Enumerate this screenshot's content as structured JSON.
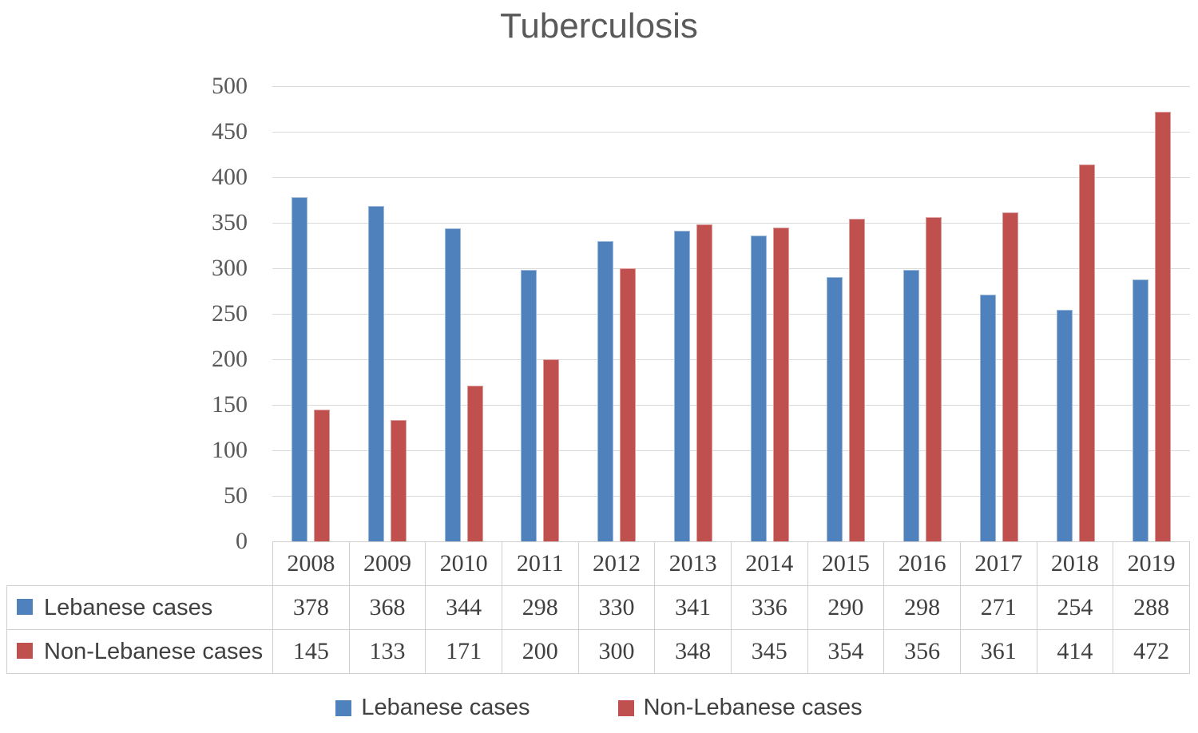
{
  "title": "Tuberculosis",
  "chart_data": {
    "type": "bar",
    "title": "Tuberculosis",
    "categories": [
      "2008",
      "2009",
      "2010",
      "2011",
      "2012",
      "2013",
      "2014",
      "2015",
      "2016",
      "2017",
      "2018",
      "2019"
    ],
    "series": [
      {
        "name": "Lebanese cases",
        "color": "#4F81BD",
        "values": [
          378,
          368,
          344,
          298,
          330,
          341,
          336,
          290,
          298,
          271,
          254,
          288
        ]
      },
      {
        "name": "Non-Lebanese cases",
        "color": "#C0504D",
        "values": [
          145,
          133,
          171,
          200,
          300,
          348,
          345,
          354,
          356,
          361,
          414,
          472
        ]
      }
    ],
    "xlabel": "",
    "ylabel": "",
    "ylim": [
      0,
      500
    ],
    "ytick_step": 50,
    "yticks": [
      "0",
      "50",
      "100",
      "150",
      "200",
      "250",
      "300",
      "350",
      "400",
      "450",
      "500"
    ],
    "grid": true,
    "legend_position": "bottom",
    "show_data_table": true
  },
  "colors": {
    "lebanese_bar": "#4F81BD",
    "non_lebanese_bar": "#C0504D",
    "gridline": "#D9D9D9",
    "table_border": "#D0CECE",
    "axis_text": "#595959",
    "table_text": "#404040",
    "title_text": "#595959"
  }
}
